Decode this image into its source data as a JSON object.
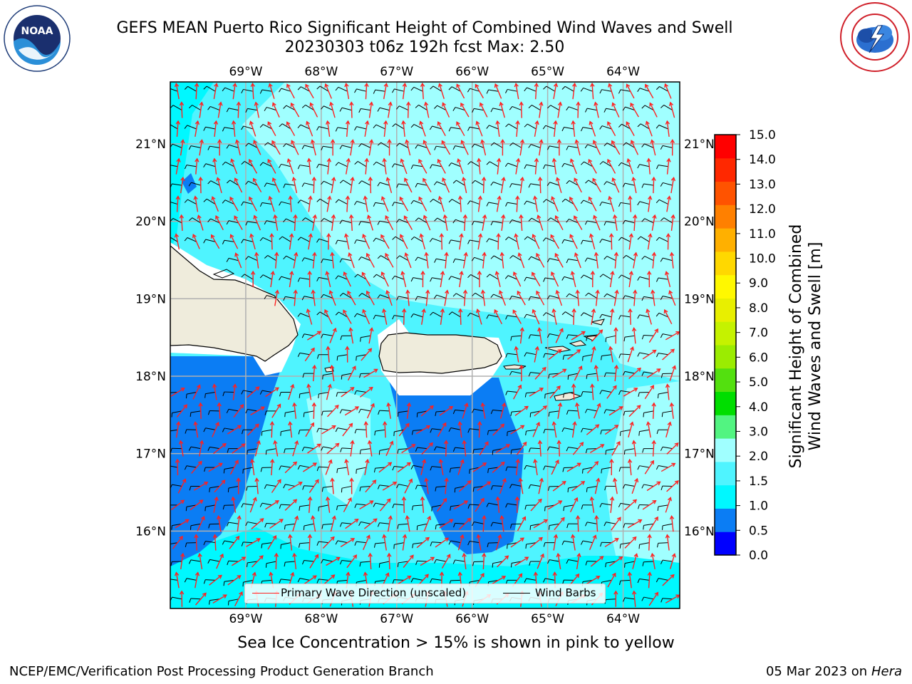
{
  "title": {
    "line1": "GEFS MEAN Puerto Rico Significant Height of Combined Wind Waves and Swell",
    "line2": "20230303 t06z 192h fcst   Max: 2.50"
  },
  "logos": {
    "left": "noaa-logo",
    "right": "nws-logo"
  },
  "map": {
    "lon_labels": [
      "69°W",
      "68°W",
      "67°W",
      "66°W",
      "65°W",
      "64°W"
    ],
    "lat_labels": [
      "21°N",
      "20°N",
      "19°N",
      "18°N",
      "17°N",
      "16°N"
    ],
    "lon_values": [
      -69,
      -68,
      -67,
      -66,
      -65,
      -64
    ],
    "lat_values": [
      21,
      20,
      19,
      18,
      17,
      16
    ],
    "extent": {
      "lon": [
        -70,
        -63.25
      ],
      "lat": [
        15,
        21.8
      ]
    },
    "land_color": "#efecdc",
    "ocean_base_color": "#4ff4ff"
  },
  "legend": {
    "wave_direction": "Primary Wave Direction (unscaled)",
    "wind_barbs": "Wind Barbs",
    "wave_color": "#ff2020",
    "barb_color": "#000000"
  },
  "colorbar": {
    "label_line1": "Significant Height of Combined",
    "label_line2": "Wind Waves and Swell [m]",
    "tick_labels": [
      "0.0",
      "0.5",
      "1.0",
      "1.5",
      "2.0",
      "3.0",
      "4.0",
      "5.0",
      "6.0",
      "7.0",
      "8.0",
      "9.0",
      "10.0",
      "11.0",
      "12.0",
      "13.0",
      "14.0",
      "15.0"
    ],
    "colors": [
      "#0000ff",
      "#0b7df4",
      "#00f8ff",
      "#4ff4ff",
      "#a0ffff",
      "#52f481",
      "#00de00",
      "#53e00f",
      "#9bec01",
      "#c5f200",
      "#e8ef00",
      "#fff800",
      "#ffd800",
      "#ffb000",
      "#ff8000",
      "#ff5300",
      "#ff2800",
      "#ff0000"
    ]
  },
  "caption": "Sea Ice Concentration > 15% is shown in pink to yellow",
  "footer": {
    "left": "NCEP/EMC/Verification Post Processing Product Generation Branch",
    "right_date": "05 Mar 2023 on",
    "right_host": "Hera"
  }
}
